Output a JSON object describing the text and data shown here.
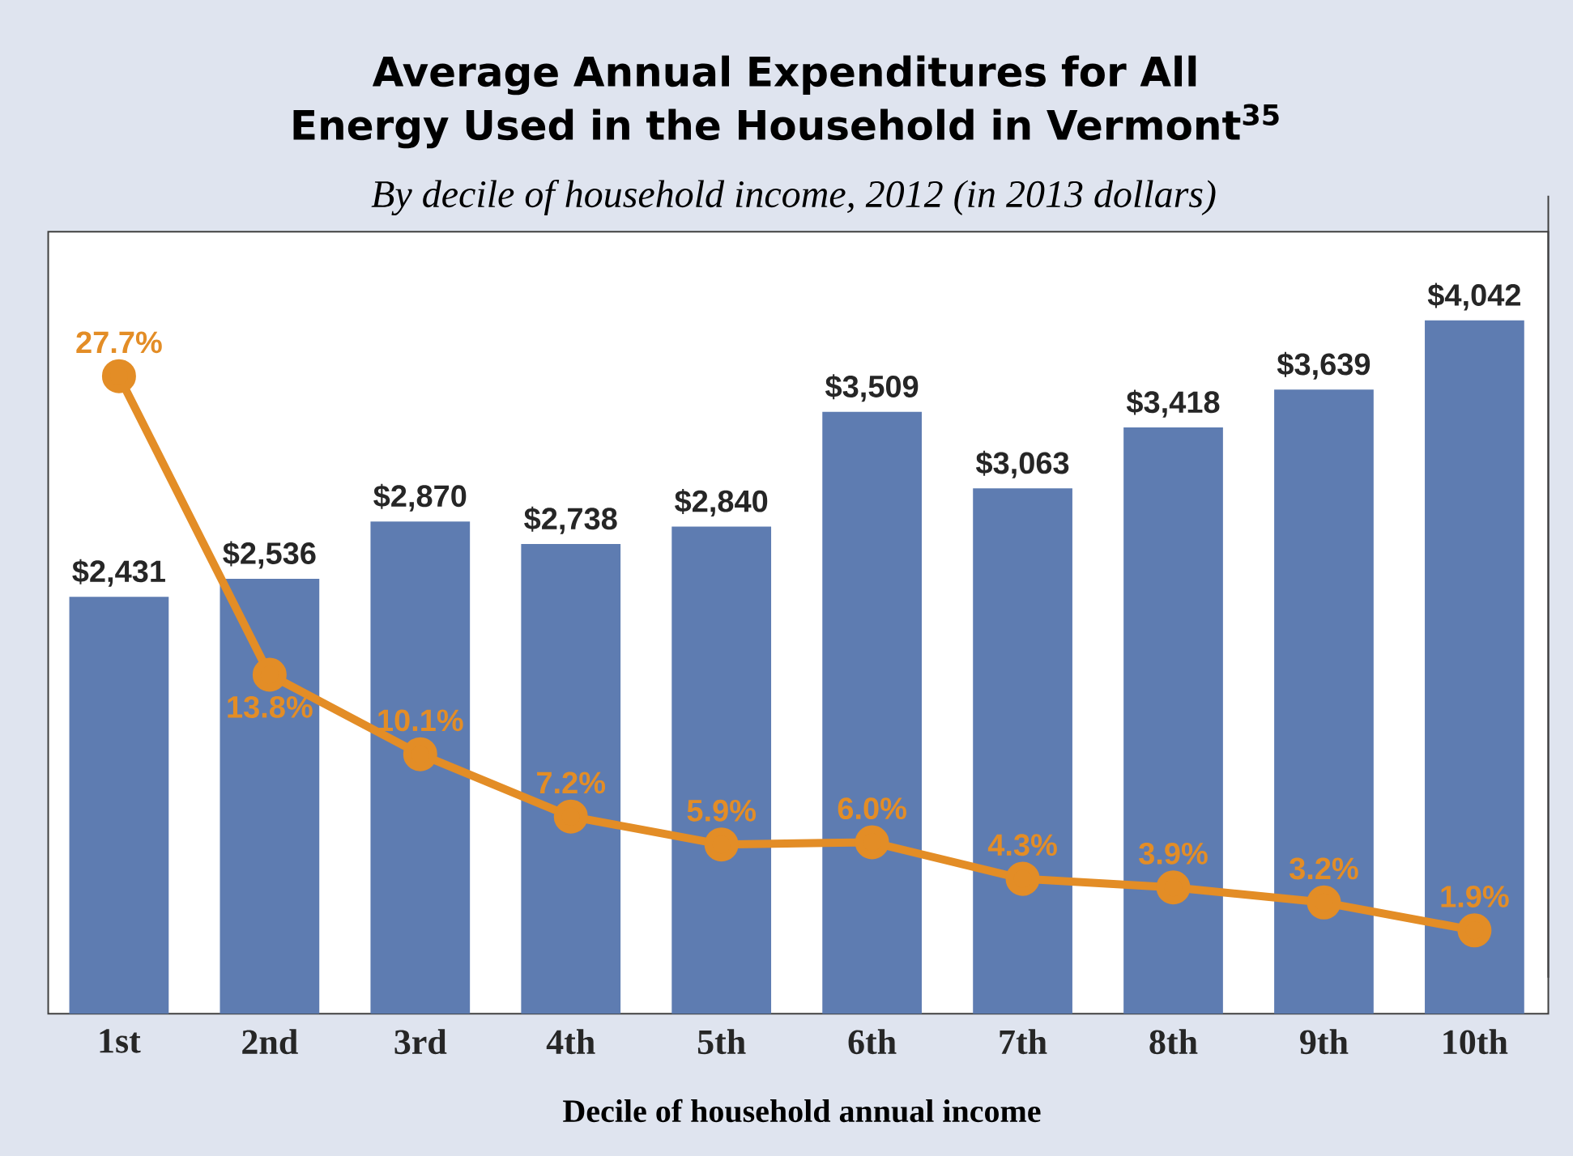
{
  "chart_data": {
    "type": "bar",
    "title": "Average Annual Expenditures for All Energy Used in the Household in Vermont$^{35}$",
    "subtitle": "By decile of household income, 2012 (in 2013 dollars)",
    "xlabel": "Decile of household annual income",
    "categories": [
      "1st",
      "2nd",
      "3rd",
      "4th",
      "5th",
      "6th",
      "7th",
      "8th",
      "9th",
      "10th"
    ],
    "series": [
      {
        "color": "#5e7cb1",
        "values": [
          2431,
          2536,
          2870,
          2738,
          2840,
          3509,
          3063,
          3418,
          3639,
          4042
        ],
        "value_labels": [
          "$2,431",
          "$2,536",
          "$2,870",
          "$2,738",
          "$2,840",
          "$3,509",
          "$3,063",
          "$3,418",
          "$3,639",
          "$4,042"
        ]
      },
      {
        "type": "line",
        "axis": "y2",
        "color": "#e38d26",
        "marker": "circle",
        "line_style": "solid",
        "values": [
          27.7,
          13.8,
          10.1,
          7.2,
          5.9,
          6.0,
          4.3,
          3.9,
          3.2,
          1.9
        ],
        "value_labels": [
          "27.7%",
          "13.8%",
          "10.1%",
          "7.2%",
          "5.9%",
          "6.0%",
          "4.3%",
          "3.9%",
          "3.2%",
          "1.9%"
        ]
      }
    ],
    "ylim": [
      0,
      4560
    ],
    "y2lim": [
      -0.3,
      36.1
    ],
    "tick_labels": "x"
  }
}
